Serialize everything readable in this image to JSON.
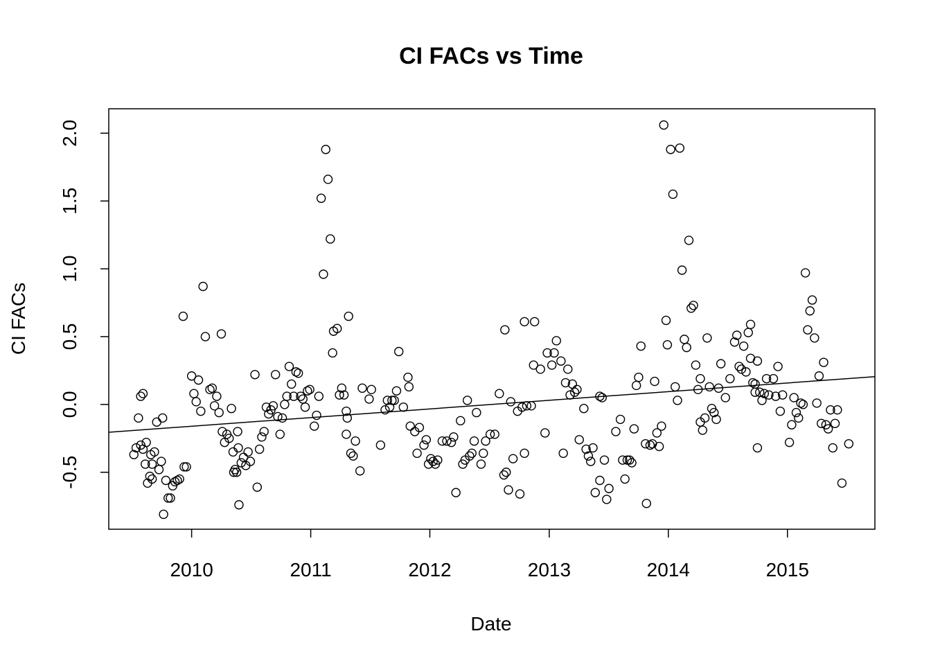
{
  "chart_data": {
    "type": "scatter",
    "title": "CI FACs vs Time",
    "xlabel": "Date",
    "ylabel": "CI FACs",
    "x_ticks": [
      "2010",
      "2011",
      "2012",
      "2013",
      "2014",
      "2015"
    ],
    "y_ticks": [
      "-0.5",
      "0.0",
      "0.5",
      "1.0",
      "1.5",
      "2.0"
    ],
    "xlim": [
      "2009-04-22",
      "2015-09-26"
    ],
    "ylim": [
      -0.92,
      2.18
    ],
    "grid": false,
    "trend_line": {
      "x": [
        "2009-04-22",
        "2015-09-26"
      ],
      "y": [
        -0.205,
        0.205
      ]
    },
    "points": [
      [
        "2009-07-08",
        -0.37
      ],
      [
        "2009-07-15",
        -0.32
      ],
      [
        "2009-07-22",
        -0.1
      ],
      [
        "2009-07-29",
        0.06
      ],
      [
        "2009-07-29",
        -0.3
      ],
      [
        "2009-08-05",
        0.08
      ],
      [
        "2009-08-05",
        -0.33
      ],
      [
        "2009-08-12",
        -0.44
      ],
      [
        "2009-08-15",
        -0.28
      ],
      [
        "2009-08-19",
        -0.58
      ],
      [
        "2009-08-26",
        -0.53
      ],
      [
        "2009-08-29",
        -0.37
      ],
      [
        "2009-09-02",
        -0.44
      ],
      [
        "2009-09-02",
        -0.55
      ],
      [
        "2009-09-09",
        -0.35
      ],
      [
        "2009-09-16",
        -0.13
      ],
      [
        "2009-09-23",
        -0.48
      ],
      [
        "2009-09-30",
        -0.42
      ],
      [
        "2009-10-04",
        -0.1
      ],
      [
        "2009-10-07",
        -0.81
      ],
      [
        "2009-10-14",
        -0.56
      ],
      [
        "2009-10-21",
        -0.69
      ],
      [
        "2009-10-28",
        -0.69
      ],
      [
        "2009-11-04",
        -0.6
      ],
      [
        "2009-11-11",
        -0.57
      ],
      [
        "2009-11-18",
        -0.56
      ],
      [
        "2009-11-25",
        -0.55
      ],
      [
        "2009-12-06",
        0.65
      ],
      [
        "2009-12-09",
        -0.46
      ],
      [
        "2009-12-16",
        -0.46
      ],
      [
        "2010-01-01",
        0.21
      ],
      [
        "2010-01-08",
        0.08
      ],
      [
        "2010-01-15",
        0.02
      ],
      [
        "2010-01-22",
        0.18
      ],
      [
        "2010-01-29",
        -0.05
      ],
      [
        "2010-02-05",
        0.87
      ],
      [
        "2010-02-12",
        0.5
      ],
      [
        "2010-02-26",
        0.11
      ],
      [
        "2010-03-05",
        0.12
      ],
      [
        "2010-03-12",
        -0.01
      ],
      [
        "2010-03-19",
        0.06
      ],
      [
        "2010-03-26",
        -0.06
      ],
      [
        "2010-04-02",
        0.52
      ],
      [
        "2010-04-05",
        -0.2
      ],
      [
        "2010-04-12",
        -0.28
      ],
      [
        "2010-04-19",
        -0.22
      ],
      [
        "2010-04-26",
        -0.25
      ],
      [
        "2010-05-03",
        -0.03
      ],
      [
        "2010-05-08",
        -0.35
      ],
      [
        "2010-05-10",
        -0.5
      ],
      [
        "2010-05-14",
        -0.48
      ],
      [
        "2010-05-19",
        -0.5
      ],
      [
        "2010-05-22",
        -0.2
      ],
      [
        "2010-05-24",
        -0.32
      ],
      [
        "2010-05-26",
        -0.74
      ],
      [
        "2010-06-02",
        -0.43
      ],
      [
        "2010-06-09",
        -0.39
      ],
      [
        "2010-06-16",
        -0.45
      ],
      [
        "2010-06-23",
        -0.35
      ],
      [
        "2010-06-30",
        -0.42
      ],
      [
        "2010-07-14",
        0.22
      ],
      [
        "2010-07-21",
        -0.61
      ],
      [
        "2010-07-28",
        -0.33
      ],
      [
        "2010-08-04",
        -0.24
      ],
      [
        "2010-08-11",
        -0.2
      ],
      [
        "2010-08-18",
        -0.02
      ],
      [
        "2010-08-25",
        -0.07
      ],
      [
        "2010-09-01",
        -0.04
      ],
      [
        "2010-09-08",
        -0.01
      ],
      [
        "2010-09-15",
        0.22
      ],
      [
        "2010-09-22",
        -0.09
      ],
      [
        "2010-09-29",
        -0.22
      ],
      [
        "2010-10-06",
        -0.1
      ],
      [
        "2010-10-13",
        0.0
      ],
      [
        "2010-10-20",
        0.06
      ],
      [
        "2010-10-27",
        0.28
      ],
      [
        "2010-11-03",
        0.15
      ],
      [
        "2010-11-10",
        0.06
      ],
      [
        "2010-11-17",
        0.24
      ],
      [
        "2010-11-24",
        0.23
      ],
      [
        "2010-12-01",
        0.06
      ],
      [
        "2010-12-08",
        0.04
      ],
      [
        "2010-12-15",
        -0.02
      ],
      [
        "2010-12-22",
        0.1
      ],
      [
        "2010-12-29",
        0.11
      ],
      [
        "2011-01-12",
        -0.16
      ],
      [
        "2011-01-19",
        -0.08
      ],
      [
        "2011-01-26",
        0.06
      ],
      [
        "2011-02-02",
        1.52
      ],
      [
        "2011-02-09",
        0.96
      ],
      [
        "2011-02-16",
        1.88
      ],
      [
        "2011-02-23",
        1.66
      ],
      [
        "2011-03-02",
        1.22
      ],
      [
        "2011-03-09",
        0.38
      ],
      [
        "2011-03-12",
        0.54
      ],
      [
        "2011-03-23",
        0.56
      ],
      [
        "2011-03-30",
        0.07
      ],
      [
        "2011-04-06",
        0.12
      ],
      [
        "2011-04-13",
        0.07
      ],
      [
        "2011-04-20",
        -0.05
      ],
      [
        "2011-04-23",
        -0.1
      ],
      [
        "2011-04-20",
        -0.22
      ],
      [
        "2011-04-27",
        0.65
      ],
      [
        "2011-05-04",
        -0.36
      ],
      [
        "2011-05-11",
        -0.38
      ],
      [
        "2011-05-18",
        -0.27
      ],
      [
        "2011-06-01",
        -0.49
      ],
      [
        "2011-06-08",
        0.12
      ],
      [
        "2011-06-29",
        0.04
      ],
      [
        "2011-07-06",
        0.11
      ],
      [
        "2011-08-03",
        -0.3
      ],
      [
        "2011-08-17",
        -0.04
      ],
      [
        "2011-08-24",
        0.03
      ],
      [
        "2011-08-31",
        -0.02
      ],
      [
        "2011-09-07",
        0.03
      ],
      [
        "2011-09-14",
        0.03
      ],
      [
        "2011-09-21",
        0.1
      ],
      [
        "2011-09-28",
        0.39
      ],
      [
        "2011-10-12",
        -0.02
      ],
      [
        "2011-10-26",
        0.2
      ],
      [
        "2011-10-29",
        0.13
      ],
      [
        "2011-11-02",
        -0.16
      ],
      [
        "2011-11-16",
        -0.2
      ],
      [
        "2011-11-23",
        -0.36
      ],
      [
        "2011-11-30",
        -0.17
      ],
      [
        "2011-12-14",
        -0.3
      ],
      [
        "2011-12-21",
        -0.26
      ],
      [
        "2011-12-28",
        -0.44
      ],
      [
        "2012-01-04",
        -0.4
      ],
      [
        "2012-01-11",
        -0.42
      ],
      [
        "2012-01-18",
        -0.44
      ],
      [
        "2012-01-25",
        -0.41
      ],
      [
        "2012-02-08",
        -0.27
      ],
      [
        "2012-02-22",
        -0.27
      ],
      [
        "2012-03-07",
        -0.28
      ],
      [
        "2012-03-14",
        -0.24
      ],
      [
        "2012-03-21",
        -0.65
      ],
      [
        "2012-04-04",
        -0.12
      ],
      [
        "2012-04-11",
        -0.44
      ],
      [
        "2012-04-18",
        -0.41
      ],
      [
        "2012-04-25",
        0.03
      ],
      [
        "2012-05-02",
        -0.38
      ],
      [
        "2012-05-09",
        -0.36
      ],
      [
        "2012-05-16",
        -0.27
      ],
      [
        "2012-05-23",
        -0.06
      ],
      [
        "2012-06-06",
        -0.44
      ],
      [
        "2012-06-13",
        -0.36
      ],
      [
        "2012-06-20",
        -0.27
      ],
      [
        "2012-07-04",
        -0.22
      ],
      [
        "2012-07-18",
        -0.22
      ],
      [
        "2012-08-01",
        0.08
      ],
      [
        "2012-08-15",
        -0.52
      ],
      [
        "2012-08-18",
        0.55
      ],
      [
        "2012-08-22",
        -0.5
      ],
      [
        "2012-08-29",
        -0.63
      ],
      [
        "2012-09-05",
        0.02
      ],
      [
        "2012-09-12",
        -0.4
      ],
      [
        "2012-09-26",
        -0.05
      ],
      [
        "2012-10-03",
        -0.66
      ],
      [
        "2012-10-10",
        -0.02
      ],
      [
        "2012-10-17",
        -0.36
      ],
      [
        "2012-10-17",
        0.61
      ],
      [
        "2012-10-24",
        -0.01
      ],
      [
        "2012-11-07",
        -0.01
      ],
      [
        "2012-11-14",
        0.29
      ],
      [
        "2012-11-17",
        0.61
      ],
      [
        "2012-12-05",
        0.26
      ],
      [
        "2012-12-19",
        -0.21
      ],
      [
        "2012-12-26",
        0.38
      ],
      [
        "2013-01-09",
        0.29
      ],
      [
        "2013-01-16",
        0.38
      ],
      [
        "2013-01-23",
        0.47
      ],
      [
        "2013-02-06",
        0.32
      ],
      [
        "2013-02-13",
        -0.36
      ],
      [
        "2013-02-20",
        0.16
      ],
      [
        "2013-02-27",
        0.26
      ],
      [
        "2013-03-06",
        0.07
      ],
      [
        "2013-03-13",
        0.15
      ],
      [
        "2013-03-20",
        0.09
      ],
      [
        "2013-03-27",
        0.11
      ],
      [
        "2013-04-03",
        -0.26
      ],
      [
        "2013-04-17",
        -0.03
      ],
      [
        "2013-04-24",
        -0.33
      ],
      [
        "2013-05-01",
        -0.38
      ],
      [
        "2013-05-08",
        -0.42
      ],
      [
        "2013-05-15",
        -0.32
      ],
      [
        "2013-05-22",
        -0.65
      ],
      [
        "2013-06-05",
        -0.56
      ],
      [
        "2013-06-05",
        0.06
      ],
      [
        "2013-06-12",
        0.05
      ],
      [
        "2013-06-19",
        -0.41
      ],
      [
        "2013-06-26",
        -0.7
      ],
      [
        "2013-07-03",
        -0.62
      ],
      [
        "2013-07-24",
        -0.2
      ],
      [
        "2013-08-07",
        -0.11
      ],
      [
        "2013-08-14",
        -0.41
      ],
      [
        "2013-08-21",
        -0.55
      ],
      [
        "2013-08-28",
        -0.41
      ],
      [
        "2013-09-04",
        -0.41
      ],
      [
        "2013-09-11",
        -0.43
      ],
      [
        "2013-09-18",
        -0.18
      ],
      [
        "2013-09-25",
        0.14
      ],
      [
        "2013-10-02",
        0.2
      ],
      [
        "2013-10-09",
        0.43
      ],
      [
        "2013-10-23",
        -0.29
      ],
      [
        "2013-10-26",
        -0.73
      ],
      [
        "2013-11-06",
        -0.3
      ],
      [
        "2013-11-13",
        -0.29
      ],
      [
        "2013-11-20",
        0.17
      ],
      [
        "2013-11-27",
        -0.21
      ],
      [
        "2013-12-04",
        -0.31
      ],
      [
        "2013-12-11",
        -0.16
      ],
      [
        "2013-12-18",
        2.06
      ],
      [
        "2013-12-25",
        0.62
      ],
      [
        "2013-12-29",
        0.44
      ],
      [
        "2014-01-08",
        1.88
      ],
      [
        "2014-01-15",
        1.55
      ],
      [
        "2014-01-22",
        0.13
      ],
      [
        "2014-01-29",
        0.03
      ],
      [
        "2014-02-05",
        1.89
      ],
      [
        "2014-02-12",
        0.99
      ],
      [
        "2014-02-19",
        0.48
      ],
      [
        "2014-02-26",
        0.42
      ],
      [
        "2014-03-05",
        1.21
      ],
      [
        "2014-03-12",
        0.71
      ],
      [
        "2014-03-19",
        0.73
      ],
      [
        "2014-03-26",
        0.29
      ],
      [
        "2014-04-02",
        0.11
      ],
      [
        "2014-04-09",
        0.19
      ],
      [
        "2014-04-09",
        -0.13
      ],
      [
        "2014-04-16",
        -0.19
      ],
      [
        "2014-04-23",
        -0.1
      ],
      [
        "2014-04-30",
        0.49
      ],
      [
        "2014-05-07",
        0.13
      ],
      [
        "2014-05-14",
        -0.03
      ],
      [
        "2014-05-21",
        -0.06
      ],
      [
        "2014-05-28",
        -0.11
      ],
      [
        "2014-06-04",
        0.12
      ],
      [
        "2014-06-11",
        0.3
      ],
      [
        "2014-06-25",
        0.05
      ],
      [
        "2014-07-09",
        0.19
      ],
      [
        "2014-07-23",
        0.46
      ],
      [
        "2014-07-30",
        0.51
      ],
      [
        "2014-08-06",
        0.28
      ],
      [
        "2014-08-13",
        0.26
      ],
      [
        "2014-08-20",
        0.43
      ],
      [
        "2014-08-27",
        0.24
      ],
      [
        "2014-09-03",
        0.53
      ],
      [
        "2014-09-10",
        0.59
      ],
      [
        "2014-09-10",
        0.34
      ],
      [
        "2014-09-17",
        0.16
      ],
      [
        "2014-09-24",
        0.15
      ],
      [
        "2014-09-24",
        0.09
      ],
      [
        "2014-10-01",
        0.32
      ],
      [
        "2014-10-01",
        -0.32
      ],
      [
        "2014-10-08",
        0.09
      ],
      [
        "2014-10-15",
        0.03
      ],
      [
        "2014-10-22",
        0.08
      ],
      [
        "2014-10-29",
        0.19
      ],
      [
        "2014-11-05",
        0.07
      ],
      [
        "2014-11-19",
        0.19
      ],
      [
        "2014-11-26",
        0.06
      ],
      [
        "2014-12-03",
        0.28
      ],
      [
        "2014-12-10",
        -0.05
      ],
      [
        "2014-12-17",
        0.07
      ],
      [
        "2015-01-07",
        -0.28
      ],
      [
        "2015-01-14",
        -0.15
      ],
      [
        "2015-01-21",
        0.05
      ],
      [
        "2015-01-28",
        -0.06
      ],
      [
        "2015-02-04",
        -0.1
      ],
      [
        "2015-02-11",
        0.01
      ],
      [
        "2015-02-18",
        0.0
      ],
      [
        "2015-02-25",
        0.97
      ],
      [
        "2015-03-04",
        0.55
      ],
      [
        "2015-03-11",
        0.69
      ],
      [
        "2015-03-18",
        0.77
      ],
      [
        "2015-03-25",
        0.49
      ],
      [
        "2015-04-01",
        0.01
      ],
      [
        "2015-04-08",
        0.21
      ],
      [
        "2015-04-15",
        -0.14
      ],
      [
        "2015-04-22",
        0.31
      ],
      [
        "2015-04-29",
        -0.15
      ],
      [
        "2015-05-06",
        -0.18
      ],
      [
        "2015-05-13",
        -0.04
      ],
      [
        "2015-05-20",
        -0.32
      ],
      [
        "2015-05-27",
        -0.14
      ],
      [
        "2015-06-03",
        -0.04
      ],
      [
        "2015-06-17",
        -0.58
      ],
      [
        "2015-07-08",
        -0.29
      ]
    ]
  }
}
